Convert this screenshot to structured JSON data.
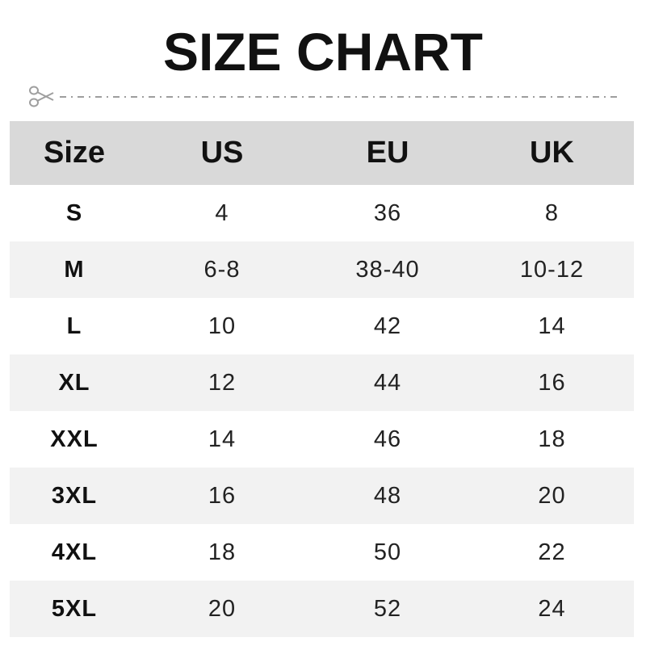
{
  "title": "SIZE CHART",
  "icons": {
    "scissors": "scissors-icon"
  },
  "colors": {
    "header_bg": "#d9d9d9",
    "alt_row_bg": "#f2f2f2",
    "dash": "#9e9e9e"
  },
  "chart_data": {
    "type": "table",
    "title": "SIZE CHART",
    "columns": [
      "Size",
      "US",
      "EU",
      "UK"
    ],
    "rows": [
      [
        "S",
        "4",
        "36",
        "8"
      ],
      [
        "M",
        "6-8",
        "38-40",
        "10-12"
      ],
      [
        "L",
        "10",
        "42",
        "14"
      ],
      [
        "XL",
        "12",
        "44",
        "16"
      ],
      [
        "XXL",
        "14",
        "46",
        "18"
      ],
      [
        "3XL",
        "16",
        "48",
        "20"
      ],
      [
        "4XL",
        "18",
        "50",
        "22"
      ],
      [
        "5XL",
        "20",
        "52",
        "24"
      ]
    ]
  }
}
